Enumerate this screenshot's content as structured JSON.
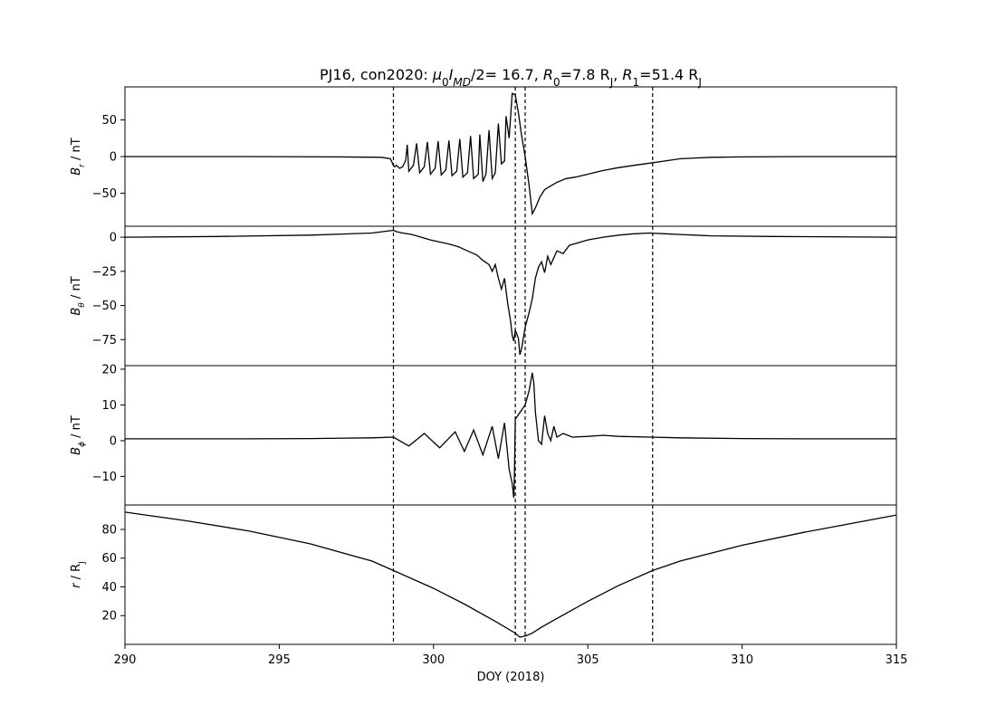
{
  "figure": {
    "title_parts": [
      {
        "t": "PJ16, con2020: "
      },
      {
        "t": "μ",
        "i": true
      },
      {
        "t": "0",
        "sub": true
      },
      {
        "t": "I",
        "i": true
      },
      {
        "t": "MD",
        "i": true,
        "sub": true
      },
      {
        "t": "/2= 16.7, "
      },
      {
        "t": "R",
        "i": true
      },
      {
        "t": "0",
        "sub": true
      },
      {
        "t": "=7.8 R"
      },
      {
        "t": "J",
        "sub": true
      },
      {
        "t": ", "
      },
      {
        "t": "R",
        "i": true
      },
      {
        "t": "1",
        "sub": true
      },
      {
        "t": "=51.4 R"
      },
      {
        "t": "J",
        "sub": true
      }
    ],
    "xlabel": "DOY (2018)",
    "line_color": "#000000"
  },
  "chart_data": {
    "type": "line",
    "x_range": [
      290,
      315
    ],
    "x_ticks": [
      290,
      295,
      300,
      305,
      310,
      315
    ],
    "vlines": [
      298.7,
      302.65,
      302.97,
      307.1
    ],
    "panels": [
      {
        "id": "br",
        "ylabel_parts": [
          {
            "t": "B",
            "i": true
          },
          {
            "t": "r",
            "i": true,
            "sub": true
          },
          {
            "t": " / nT"
          }
        ],
        "ylim": [
          -95,
          95
        ],
        "yticks": [
          50,
          0,
          -50
        ],
        "tick_labels": [
          "50",
          "0",
          "−50"
        ],
        "points": [
          [
            290,
            0
          ],
          [
            294,
            0
          ],
          [
            297,
            -0.5
          ],
          [
            298.3,
            -1
          ],
          [
            298.6,
            -3
          ],
          [
            298.7,
            -12
          ],
          [
            298.75,
            -14
          ],
          [
            298.8,
            -12
          ],
          [
            298.9,
            -16
          ],
          [
            299.0,
            -14
          ],
          [
            299.1,
            -5
          ],
          [
            299.15,
            16
          ],
          [
            299.2,
            -20
          ],
          [
            299.35,
            -12
          ],
          [
            299.45,
            18
          ],
          [
            299.55,
            -22
          ],
          [
            299.7,
            -14
          ],
          [
            299.8,
            20
          ],
          [
            299.9,
            -24
          ],
          [
            300.05,
            -16
          ],
          [
            300.15,
            21
          ],
          [
            300.25,
            -25
          ],
          [
            300.4,
            -18
          ],
          [
            300.5,
            22
          ],
          [
            300.6,
            -26
          ],
          [
            300.75,
            -20
          ],
          [
            300.85,
            24
          ],
          [
            300.95,
            -28
          ],
          [
            301.1,
            -22
          ],
          [
            301.2,
            28
          ],
          [
            301.3,
            -30
          ],
          [
            301.45,
            -24
          ],
          [
            301.5,
            30
          ],
          [
            301.6,
            -34
          ],
          [
            301.7,
            -24
          ],
          [
            301.8,
            36
          ],
          [
            301.9,
            -30
          ],
          [
            302.0,
            -22
          ],
          [
            302.1,
            45
          ],
          [
            302.2,
            -10
          ],
          [
            302.3,
            -6
          ],
          [
            302.35,
            55
          ],
          [
            302.45,
            25
          ],
          [
            302.55,
            86
          ],
          [
            302.65,
            84
          ],
          [
            302.75,
            60
          ],
          [
            302.85,
            30
          ],
          [
            302.97,
            0
          ],
          [
            303.1,
            -40
          ],
          [
            303.2,
            -78
          ],
          [
            303.3,
            -70
          ],
          [
            303.45,
            -55
          ],
          [
            303.6,
            -45
          ],
          [
            303.8,
            -40
          ],
          [
            304.0,
            -35
          ],
          [
            304.3,
            -30
          ],
          [
            304.6,
            -28
          ],
          [
            305.0,
            -24
          ],
          [
            305.5,
            -19
          ],
          [
            306.0,
            -15
          ],
          [
            306.5,
            -12
          ],
          [
            307.0,
            -9
          ],
          [
            307.5,
            -6
          ],
          [
            308.0,
            -3
          ],
          [
            309.0,
            -1
          ],
          [
            310,
            -0.5
          ],
          [
            312,
            0
          ],
          [
            315,
            0
          ]
        ]
      },
      {
        "id": "btheta",
        "ylabel_parts": [
          {
            "t": "B",
            "i": true
          },
          {
            "t": "θ",
            "i": true,
            "sub": true
          },
          {
            "t": " / nT"
          }
        ],
        "ylim": [
          -94,
          8
        ],
        "yticks": [
          0,
          -25,
          -50,
          -75
        ],
        "tick_labels": [
          "0",
          "−25",
          "−50",
          "−75"
        ],
        "points": [
          [
            290,
            0
          ],
          [
            293,
            0.5
          ],
          [
            296,
            1.5
          ],
          [
            298,
            3
          ],
          [
            298.7,
            5
          ],
          [
            298.8,
            4
          ],
          [
            299.0,
            3
          ],
          [
            299.3,
            2
          ],
          [
            299.6,
            0
          ],
          [
            299.9,
            -2
          ],
          [
            300.2,
            -3.5
          ],
          [
            300.5,
            -5
          ],
          [
            300.8,
            -7
          ],
          [
            301.0,
            -9
          ],
          [
            301.2,
            -11
          ],
          [
            301.4,
            -13
          ],
          [
            301.6,
            -17
          ],
          [
            301.8,
            -20
          ],
          [
            301.9,
            -25
          ],
          [
            302.0,
            -20
          ],
          [
            302.1,
            -30
          ],
          [
            302.2,
            -38
          ],
          [
            302.3,
            -30
          ],
          [
            302.4,
            -48
          ],
          [
            302.5,
            -62
          ],
          [
            302.55,
            -72
          ],
          [
            302.6,
            -76
          ],
          [
            302.65,
            -68
          ],
          [
            302.75,
            -74
          ],
          [
            302.8,
            -86
          ],
          [
            302.85,
            -82
          ],
          [
            302.97,
            -66
          ],
          [
            303.1,
            -55
          ],
          [
            303.2,
            -45
          ],
          [
            303.3,
            -30
          ],
          [
            303.4,
            -22
          ],
          [
            303.5,
            -18
          ],
          [
            303.6,
            -26
          ],
          [
            303.7,
            -14
          ],
          [
            303.8,
            -20
          ],
          [
            304.0,
            -10
          ],
          [
            304.2,
            -12
          ],
          [
            304.4,
            -6
          ],
          [
            304.7,
            -4
          ],
          [
            305.0,
            -2
          ],
          [
            305.5,
            0
          ],
          [
            306.0,
            1.5
          ],
          [
            306.5,
            2.5
          ],
          [
            307.0,
            3
          ],
          [
            307.5,
            2.5
          ],
          [
            308.0,
            2
          ],
          [
            309,
            1
          ],
          [
            311,
            0.5
          ],
          [
            315,
            0
          ]
        ]
      },
      {
        "id": "bphi",
        "ylabel_parts": [
          {
            "t": "B",
            "i": true
          },
          {
            "t": "ϕ",
            "i": true,
            "sub": true
          },
          {
            "t": " / nT"
          }
        ],
        "ylim": [
          -18,
          21
        ],
        "yticks": [
          20,
          10,
          0,
          -10
        ],
        "tick_labels": [
          "20",
          "10",
          "0",
          "−10"
        ],
        "points": [
          [
            290,
            0.5
          ],
          [
            292,
            0.5
          ],
          [
            294,
            0.5
          ],
          [
            296,
            0.6
          ],
          [
            298,
            0.8
          ],
          [
            298.7,
            1
          ],
          [
            299.2,
            -1.5
          ],
          [
            299.7,
            2
          ],
          [
            300.2,
            -2
          ],
          [
            300.7,
            2.5
          ],
          [
            301.0,
            -3
          ],
          [
            301.3,
            3
          ],
          [
            301.6,
            -4
          ],
          [
            301.9,
            4
          ],
          [
            302.1,
            -5
          ],
          [
            302.3,
            5
          ],
          [
            302.45,
            -8
          ],
          [
            302.55,
            -12
          ],
          [
            302.6,
            -16
          ],
          [
            302.62,
            -10
          ],
          [
            302.65,
            6
          ],
          [
            302.97,
            10
          ],
          [
            303.1,
            14
          ],
          [
            303.2,
            19
          ],
          [
            303.25,
            16
          ],
          [
            303.3,
            8
          ],
          [
            303.4,
            0
          ],
          [
            303.5,
            -1
          ],
          [
            303.6,
            7
          ],
          [
            303.7,
            2
          ],
          [
            303.8,
            0
          ],
          [
            303.9,
            4
          ],
          [
            304.0,
            1
          ],
          [
            304.2,
            2
          ],
          [
            304.5,
            1
          ],
          [
            305.0,
            1.2
          ],
          [
            305.5,
            1.5
          ],
          [
            306,
            1.2
          ],
          [
            307,
            1
          ],
          [
            308,
            0.8
          ],
          [
            310,
            0.6
          ],
          [
            312,
            0.5
          ],
          [
            315,
            0.5
          ]
        ]
      },
      {
        "id": "r",
        "ylabel_parts": [
          {
            "t": "r",
            "i": true
          },
          {
            "t": " / R"
          },
          {
            "t": "J",
            "sub": true
          }
        ],
        "ylim": [
          0,
          97
        ],
        "yticks": [
          80,
          60,
          40,
          20
        ],
        "tick_labels": [
          "80",
          "60",
          "40",
          "20"
        ],
        "points": [
          [
            290,
            92
          ],
          [
            292,
            86
          ],
          [
            294,
            79
          ],
          [
            296,
            70
          ],
          [
            298,
            58
          ],
          [
            298.7,
            51.4
          ],
          [
            300,
            39
          ],
          [
            301,
            28
          ],
          [
            302,
            16
          ],
          [
            302.65,
            7.8
          ],
          [
            302.8,
            5
          ],
          [
            303.0,
            6
          ],
          [
            303.2,
            7.8
          ],
          [
            303.5,
            12
          ],
          [
            304,
            18
          ],
          [
            305,
            30
          ],
          [
            306,
            41
          ],
          [
            307.1,
            51.4
          ],
          [
            308,
            58
          ],
          [
            310,
            69
          ],
          [
            312,
            78
          ],
          [
            314,
            86
          ],
          [
            315,
            90
          ]
        ]
      }
    ]
  }
}
